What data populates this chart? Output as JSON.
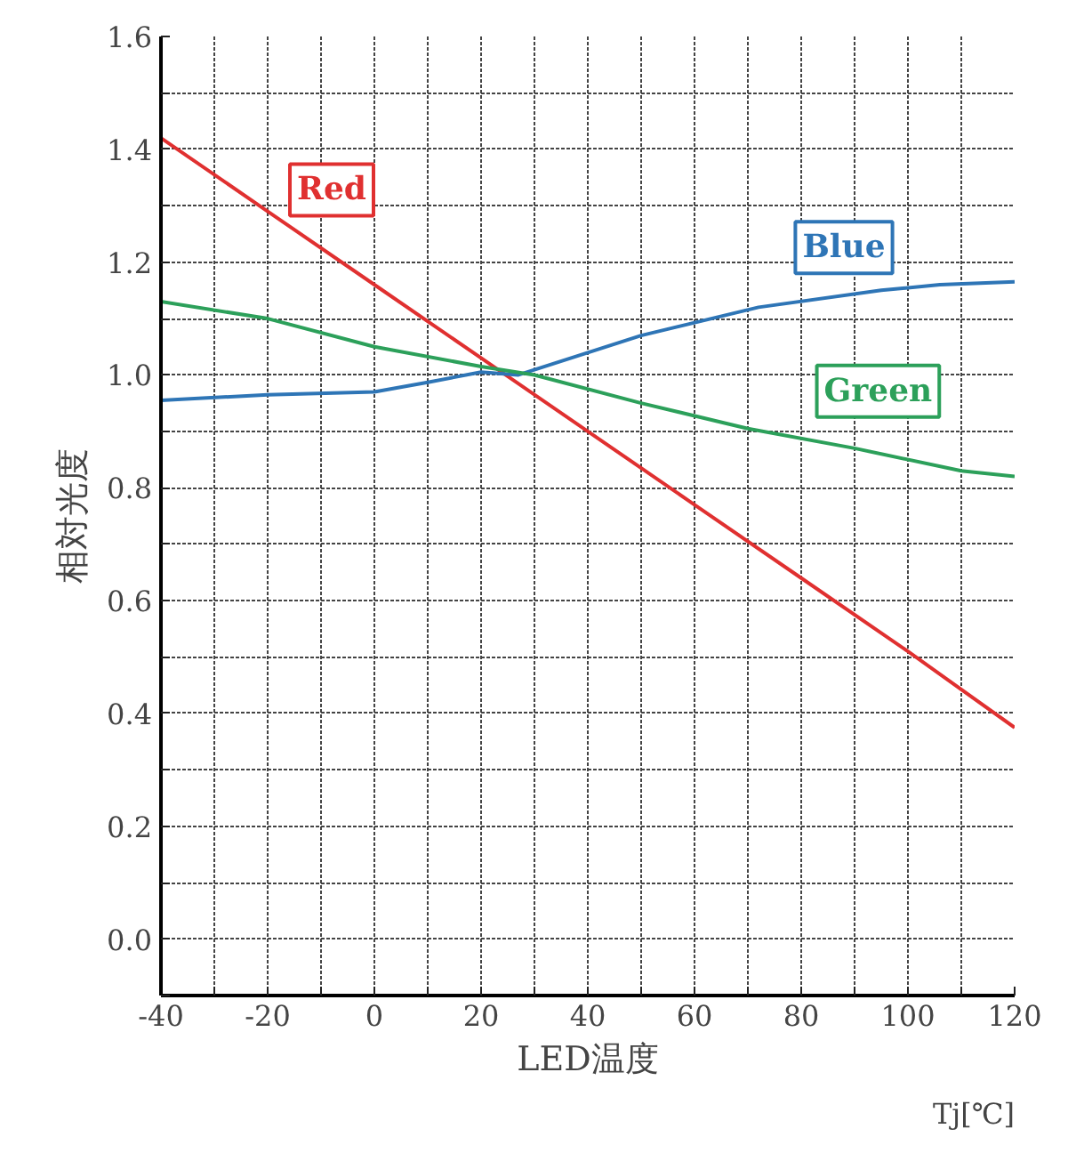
{
  "chart_data": {
    "type": "line",
    "xlabel": "LED温度",
    "ylabel": "相対光度",
    "annotations": [
      "Tj[℃]"
    ],
    "xlim": [
      -40,
      120
    ],
    "ylim": [
      -0.1,
      1.6
    ],
    "xticks": [
      -40,
      {
        "value": -30,
        "label": null
      },
      -20,
      {
        "value": -10,
        "label": null
      },
      0,
      {
        "value": 10,
        "label": null
      },
      20,
      {
        "value": 30,
        "label": null
      },
      40,
      {
        "value": 50,
        "label": null
      },
      60,
      {
        "value": 70,
        "label": null
      },
      80,
      {
        "value": 90,
        "label": null
      },
      100,
      {
        "value": 110,
        "label": null
      },
      120
    ],
    "yticks": [
      {
        "value": -0.1,
        "label": null
      },
      {
        "value": 0,
        "label": "0.0"
      },
      {
        "value": 0.1,
        "label": null
      },
      0.2,
      {
        "value": 0.3,
        "label": null
      },
      0.4,
      {
        "value": 0.5,
        "label": null
      },
      0.6,
      {
        "value": 0.7,
        "label": null
      },
      0.8,
      {
        "value": 0.9,
        "label": null
      },
      {
        "value": 1.0,
        "label": "1.0"
      },
      {
        "value": 1.1,
        "label": null
      },
      1.2,
      {
        "value": 1.3,
        "label": null
      },
      1.4,
      {
        "value": 1.5,
        "label": null
      },
      1.6
    ],
    "grid": true,
    "legend": false,
    "marker": "none",
    "line_style": "solid",
    "series": [
      {
        "name": "Red",
        "color": "#e03030",
        "x": [
          -40,
          -20,
          0,
          20,
          40,
          60,
          80,
          100,
          120
        ],
        "values": [
          1.42,
          1.29,
          1.16,
          1.03,
          0.9,
          0.77,
          0.64,
          0.51,
          0.375
        ]
      },
      {
        "name": "Blue",
        "color": "#2e75b6",
        "x": [
          -40,
          -20,
          0,
          10,
          20,
          27,
          50,
          72,
          95,
          106,
          120
        ],
        "values": [
          0.955,
          0.965,
          0.97,
          0.987,
          1.005,
          1.0,
          1.07,
          1.12,
          1.15,
          1.16,
          1.165
        ]
      },
      {
        "name": "Green",
        "color": "#2ca05a",
        "x": [
          -40,
          -20,
          0,
          20,
          30,
          50,
          70,
          90,
          110,
          120
        ],
        "values": [
          1.13,
          1.1,
          1.05,
          1.015,
          1.0,
          0.95,
          0.905,
          0.87,
          0.83,
          0.82
        ]
      }
    ]
  }
}
